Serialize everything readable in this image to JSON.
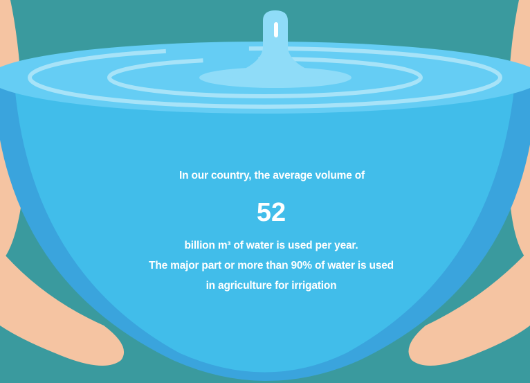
{
  "intro": "In our country, the average volume of",
  "highlight": "52",
  "lines": [
    "billion m³ of water is used per year.",
    "The major part or more than 90% of water is used",
    "in  agriculture for irrigation"
  ]
}
